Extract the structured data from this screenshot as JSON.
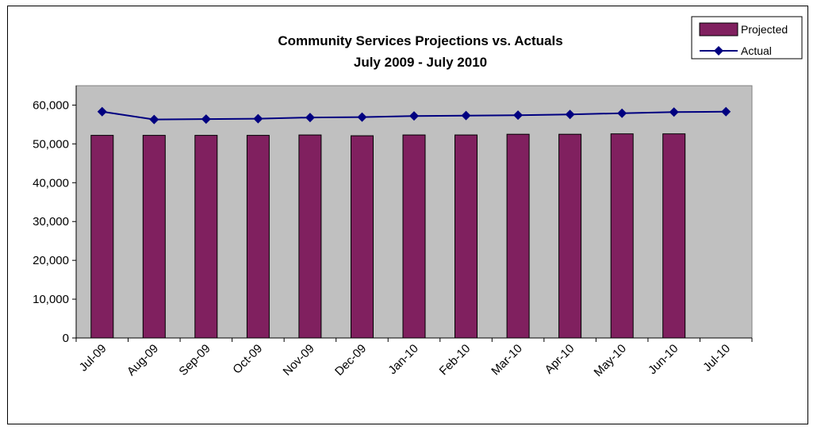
{
  "chart_data": {
    "type": "bar",
    "title": "Community Services Projections vs. Actuals",
    "subtitle": "July 2009 - July 2010",
    "categories": [
      "Jul-09",
      "Aug-09",
      "Sep-09",
      "Oct-09",
      "Nov-09",
      "Dec-09",
      "Jan-10",
      "Feb-10",
      "Mar-10",
      "Apr-10",
      "May-10",
      "Jun-10",
      "Jul-10"
    ],
    "series": [
      {
        "name": "Projected",
        "kind": "bar",
        "values": [
          52200,
          52200,
          52200,
          52200,
          52300,
          52100,
          52300,
          52300,
          52500,
          52500,
          52600,
          52600,
          null
        ]
      },
      {
        "name": "Actual",
        "kind": "line",
        "marker": "diamond",
        "values": [
          58300,
          56300,
          56400,
          56500,
          56800,
          56900,
          57200,
          57300,
          57400,
          57600,
          57900,
          58200,
          58300
        ]
      }
    ],
    "ylim": [
      0,
      65000
    ],
    "yticks": [
      0,
      10000,
      20000,
      30000,
      40000,
      50000,
      60000
    ],
    "ytick_labels": [
      "0",
      "10,000",
      "20,000",
      "30,000",
      "40,000",
      "50,000",
      "60,000"
    ],
    "xlabel": "",
    "ylabel": "",
    "grid": false,
    "legend_position": "top-right",
    "colors": {
      "bar_fill": "#80205F",
      "line": "#000080",
      "plot_background": "#C0C0C0"
    }
  }
}
